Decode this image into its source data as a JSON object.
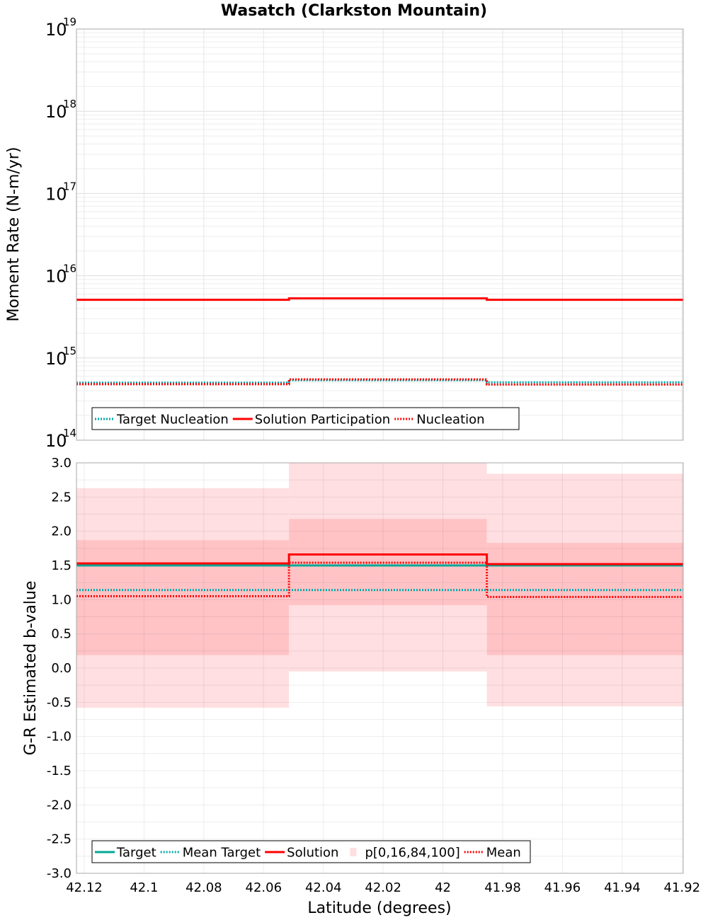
{
  "chart_data": [
    {
      "type": "line",
      "title": "Wasatch (Clarkston Mountain)",
      "xlabel": "Latitude (degrees)",
      "ylabel": "Moment Rate (N-m/yr)",
      "yscale": "log",
      "xlim": [
        42.1226,
        41.9196
      ],
      "ylim": [
        100000000000000.0,
        1e+19
      ],
      "x_ticks": [
        42.12,
        42.1,
        42.08,
        42.06,
        42.04,
        42.02,
        42,
        41.98,
        41.96,
        41.94,
        41.92
      ],
      "x_tick_labels": [
        "42.12",
        "42.1",
        "42.08",
        "42.06",
        "42.04",
        "42.02",
        "42",
        "41.98",
        "41.96",
        "41.94",
        "41.92"
      ],
      "y_tick_bases": [
        "10",
        "10",
        "10",
        "10",
        "10",
        "10"
      ],
      "y_tick_exponents": [
        "14",
        "15",
        "16",
        "17",
        "18",
        "19"
      ],
      "grid": true,
      "legend_position": "bottom-left",
      "legend": [
        "Target Nucleation",
        "Solution Participation",
        "Nucleation"
      ],
      "segments": [
        {
          "x0": 42.1226,
          "x1": 42.0515
        },
        {
          "x0": 42.0515,
          "x1": 41.9853
        },
        {
          "x0": 41.9853,
          "x1": 41.9196
        }
      ],
      "series": [
        {
          "name": "Target Nucleation",
          "style": "dotted",
          "color": "#00a8a8",
          "values": [
            500000000000000.0,
            535000000000000.0,
            505000000000000.0
          ]
        },
        {
          "name": "Solution Participation",
          "style": "solid",
          "color": "#ff0000",
          "values": [
            5100000000000000.0,
            5300000000000000.0,
            5100000000000000.0
          ]
        },
        {
          "name": "Nucleation",
          "style": "dotted",
          "color": "#ff0000",
          "values": [
            480000000000000.0,
            550000000000000.0,
            475000000000000.0
          ]
        }
      ]
    },
    {
      "type": "line",
      "title": "",
      "xlabel": "Latitude (degrees)",
      "ylabel": "G-R Estimated b-value",
      "xlim": [
        42.1226,
        41.9196
      ],
      "ylim": [
        -3.0,
        3.0
      ],
      "y_ticks": [
        -3.0,
        -2.5,
        -2.0,
        -1.5,
        -1.0,
        -0.5,
        0.0,
        0.5,
        1.0,
        1.5,
        2.0,
        2.5,
        3.0
      ],
      "y_tick_labels": [
        "-3.0",
        "-2.5",
        "-2.0",
        "-1.5",
        "-1.0",
        "-0.5",
        "0.0",
        "0.5",
        "1.0",
        "1.5",
        "2.0",
        "2.5",
        "3.0"
      ],
      "grid": true,
      "legend_position": "bottom-left",
      "legend": [
        "Target",
        "Mean Target",
        "Solution",
        "p[0,16,84,100]",
        "Mean"
      ],
      "segments": [
        {
          "x0": 42.1226,
          "x1": 42.0515
        },
        {
          "x0": 42.0515,
          "x1": 41.9853
        },
        {
          "x0": 41.9853,
          "x1": 41.9196
        }
      ],
      "bands": {
        "name": "p[0,16,84,100]",
        "outer_color": "#ffdfe1",
        "inner_color": "#ffc3c6",
        "p0": [
          -0.58,
          -0.05,
          -0.56
        ],
        "p16": [
          0.19,
          0.92,
          0.19
        ],
        "p84": [
          1.87,
          2.18,
          1.83
        ],
        "p100": [
          2.63,
          3.3,
          2.84
        ]
      },
      "series": [
        {
          "name": "Target",
          "style": "solid",
          "color": "#00a896",
          "values": [
            1.5,
            1.5,
            1.5
          ]
        },
        {
          "name": "Mean Target",
          "style": "dotted",
          "color": "#00a8a8",
          "values": [
            1.14,
            1.14,
            1.14
          ]
        },
        {
          "name": "Solution",
          "style": "solid",
          "color": "#ff0000",
          "values": [
            1.53,
            1.66,
            1.52
          ]
        },
        {
          "name": "Mean",
          "style": "dotted",
          "color": "#ff0000",
          "values": [
            1.05,
            1.54,
            1.04
          ]
        }
      ]
    }
  ]
}
